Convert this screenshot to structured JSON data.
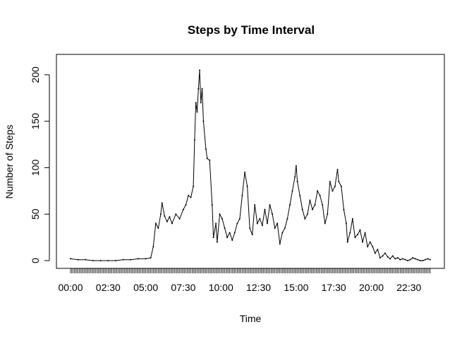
{
  "chart_data": {
    "type": "line",
    "title": "Steps by Time Interval",
    "xlabel": "Time",
    "ylabel": "Number of Steps",
    "x_unit": "minutes since midnight (5-minute intervals)",
    "xlim": [
      0,
      1435
    ],
    "ylim": [
      0,
      206
    ],
    "x_tick_labels": [
      {
        "value": 0,
        "label": "00:00"
      },
      {
        "value": 150,
        "label": "02:30"
      },
      {
        "value": 300,
        "label": "05:00"
      },
      {
        "value": 450,
        "label": "07:30"
      },
      {
        "value": 600,
        "label": "10:00"
      },
      {
        "value": 750,
        "label": "12:30"
      },
      {
        "value": 900,
        "label": "15:00"
      },
      {
        "value": 1050,
        "label": "17:30"
      },
      {
        "value": 1200,
        "label": "20:00"
      },
      {
        "value": 1350,
        "label": "22:30"
      }
    ],
    "y_ticks": [
      0,
      50,
      100,
      150,
      200
    ],
    "y_tick_labels": [
      "0",
      "50",
      "100",
      "150",
      "200"
    ],
    "grid": false,
    "legend": "none",
    "line_color": "#000000",
    "series": [
      {
        "points": [
          [
            0,
            2
          ],
          [
            30,
            1
          ],
          [
            60,
            1
          ],
          [
            90,
            0
          ],
          [
            120,
            0
          ],
          [
            150,
            0
          ],
          [
            180,
            0
          ],
          [
            210,
            1
          ],
          [
            240,
            1
          ],
          [
            270,
            2
          ],
          [
            300,
            2
          ],
          [
            320,
            3
          ],
          [
            330,
            15
          ],
          [
            340,
            40
          ],
          [
            350,
            35
          ],
          [
            360,
            50
          ],
          [
            365,
            62
          ],
          [
            375,
            48
          ],
          [
            385,
            42
          ],
          [
            395,
            47
          ],
          [
            405,
            40
          ],
          [
            420,
            50
          ],
          [
            435,
            45
          ],
          [
            450,
            55
          ],
          [
            460,
            60
          ],
          [
            470,
            70
          ],
          [
            480,
            68
          ],
          [
            490,
            80
          ],
          [
            495,
            130
          ],
          [
            500,
            170
          ],
          [
            505,
            160
          ],
          [
            510,
            185
          ],
          [
            515,
            205
          ],
          [
            520,
            170
          ],
          [
            525,
            185
          ],
          [
            530,
            150
          ],
          [
            540,
            120
          ],
          [
            545,
            110
          ],
          [
            555,
            108
          ],
          [
            565,
            60
          ],
          [
            570,
            25
          ],
          [
            580,
            40
          ],
          [
            585,
            20
          ],
          [
            595,
            50
          ],
          [
            605,
            45
          ],
          [
            615,
            35
          ],
          [
            625,
            25
          ],
          [
            635,
            30
          ],
          [
            645,
            22
          ],
          [
            655,
            30
          ],
          [
            665,
            40
          ],
          [
            675,
            45
          ],
          [
            685,
            70
          ],
          [
            695,
            95
          ],
          [
            705,
            80
          ],
          [
            715,
            35
          ],
          [
            725,
            28
          ],
          [
            735,
            60
          ],
          [
            745,
            40
          ],
          [
            755,
            45
          ],
          [
            765,
            38
          ],
          [
            775,
            55
          ],
          [
            785,
            40
          ],
          [
            795,
            60
          ],
          [
            805,
            50
          ],
          [
            815,
            35
          ],
          [
            825,
            40
          ],
          [
            835,
            18
          ],
          [
            845,
            30
          ],
          [
            855,
            35
          ],
          [
            865,
            45
          ],
          [
            875,
            60
          ],
          [
            885,
            75
          ],
          [
            895,
            90
          ],
          [
            900,
            102
          ],
          [
            905,
            85
          ],
          [
            915,
            70
          ],
          [
            925,
            55
          ],
          [
            935,
            45
          ],
          [
            945,
            50
          ],
          [
            955,
            65
          ],
          [
            965,
            55
          ],
          [
            975,
            60
          ],
          [
            985,
            75
          ],
          [
            995,
            70
          ],
          [
            1005,
            60
          ],
          [
            1015,
            40
          ],
          [
            1025,
            50
          ],
          [
            1035,
            85
          ],
          [
            1045,
            75
          ],
          [
            1055,
            80
          ],
          [
            1065,
            98
          ],
          [
            1070,
            85
          ],
          [
            1080,
            80
          ],
          [
            1090,
            55
          ],
          [
            1100,
            40
          ],
          [
            1105,
            20
          ],
          [
            1115,
            30
          ],
          [
            1125,
            45
          ],
          [
            1135,
            25
          ],
          [
            1145,
            28
          ],
          [
            1155,
            33
          ],
          [
            1165,
            20
          ],
          [
            1175,
            30
          ],
          [
            1185,
            15
          ],
          [
            1195,
            20
          ],
          [
            1205,
            15
          ],
          [
            1215,
            8
          ],
          [
            1225,
            12
          ],
          [
            1235,
            3
          ],
          [
            1245,
            5
          ],
          [
            1255,
            8
          ],
          [
            1265,
            4
          ],
          [
            1275,
            2
          ],
          [
            1285,
            5
          ],
          [
            1295,
            2
          ],
          [
            1305,
            3
          ],
          [
            1315,
            1
          ],
          [
            1325,
            2
          ],
          [
            1335,
            1
          ],
          [
            1345,
            0
          ],
          [
            1355,
            1
          ],
          [
            1365,
            3
          ],
          [
            1375,
            2
          ],
          [
            1385,
            1
          ],
          [
            1395,
            0
          ],
          [
            1405,
            0
          ],
          [
            1415,
            1
          ],
          [
            1425,
            2
          ],
          [
            1435,
            1
          ]
        ]
      }
    ]
  }
}
